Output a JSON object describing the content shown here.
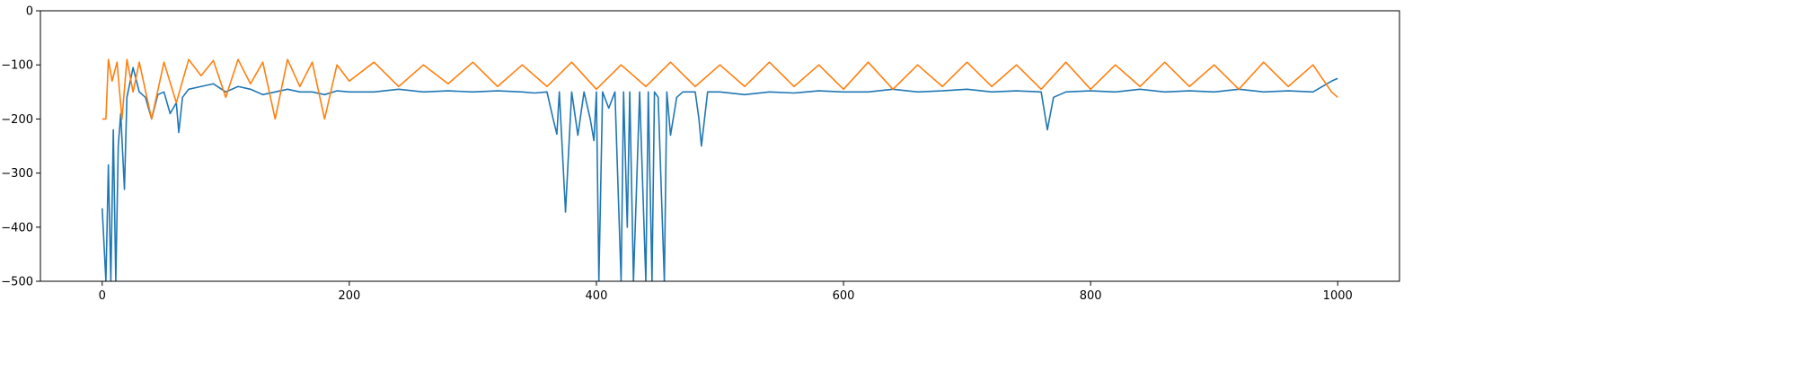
{
  "chart_data": {
    "type": "line",
    "title": "",
    "xlabel": "",
    "ylabel": "",
    "xlim": [
      -50,
      1050
    ],
    "ylim": [
      -500,
      0
    ],
    "xticks": [
      0,
      200,
      400,
      600,
      800,
      1000
    ],
    "xtick_labels": [
      "0",
      "200",
      "400",
      "600",
      "800",
      "1000"
    ],
    "yticks": [
      0,
      -100,
      -200,
      -300,
      -400,
      -500
    ],
    "ytick_labels": [
      "0",
      "−100",
      "−200",
      "−300",
      "−400",
      "−500"
    ],
    "grid": false,
    "legend": "none",
    "series": [
      {
        "color": "#1f77b4",
        "x": [
          0,
          3,
          5,
          7,
          9,
          11,
          13,
          15,
          18,
          20,
          25,
          30,
          35,
          40,
          45,
          50,
          55,
          60,
          62,
          65,
          70,
          80,
          90,
          100,
          110,
          120,
          130,
          140,
          150,
          160,
          170,
          180,
          190,
          200,
          220,
          240,
          260,
          280,
          300,
          320,
          340,
          350,
          360,
          365,
          368,
          370,
          375,
          380,
          385,
          390,
          395,
          398,
          400,
          402,
          405,
          410,
          415,
          420,
          422,
          425,
          427,
          430,
          435,
          440,
          442,
          445,
          447,
          450,
          455,
          457,
          460,
          465,
          470,
          475,
          480,
          483,
          485,
          490,
          500,
          520,
          540,
          560,
          580,
          600,
          620,
          640,
          660,
          680,
          700,
          720,
          740,
          760,
          765,
          770,
          780,
          800,
          820,
          840,
          860,
          880,
          900,
          920,
          940,
          960,
          980,
          995,
          1000
        ],
        "y": [
          -365,
          -500,
          -285,
          -500,
          -220,
          -500,
          -250,
          -190,
          -330,
          -160,
          -105,
          -150,
          -160,
          -200,
          -155,
          -150,
          -190,
          -170,
          -225,
          -160,
          -145,
          -140,
          -135,
          -150,
          -140,
          -145,
          -155,
          -150,
          -145,
          -150,
          -150,
          -155,
          -148,
          -150,
          -150,
          -145,
          -150,
          -148,
          -150,
          -148,
          -150,
          -152,
          -150,
          -200,
          -228,
          -150,
          -372,
          -150,
          -230,
          -150,
          -200,
          -240,
          -150,
          -500,
          -150,
          -180,
          -150,
          -500,
          -150,
          -400,
          -150,
          -500,
          -150,
          -500,
          -150,
          -500,
          -150,
          -160,
          -500,
          -150,
          -230,
          -160,
          -150,
          -150,
          -150,
          -200,
          -250,
          -150,
          -150,
          -155,
          -150,
          -152,
          -148,
          -150,
          -150,
          -145,
          -150,
          -148,
          -145,
          -150,
          -148,
          -150,
          -220,
          -160,
          -150,
          -148,
          -150,
          -145,
          -150,
          -148,
          -150,
          -145,
          -150,
          -148,
          -150,
          -130,
          -125
        ]
      },
      {
        "color": "#ff7f0e",
        "x": [
          0,
          3,
          5,
          8,
          12,
          16,
          20,
          25,
          30,
          40,
          50,
          60,
          70,
          80,
          90,
          100,
          110,
          120,
          130,
          140,
          150,
          160,
          170,
          180,
          190,
          200,
          220,
          240,
          260,
          280,
          300,
          320,
          340,
          360,
          380,
          400,
          420,
          440,
          460,
          480,
          500,
          520,
          540,
          560,
          580,
          600,
          620,
          640,
          660,
          680,
          700,
          720,
          740,
          760,
          780,
          800,
          820,
          840,
          860,
          880,
          900,
          920,
          940,
          960,
          980,
          995,
          1000
        ],
        "y": [
          -200,
          -200,
          -90,
          -130,
          -95,
          -200,
          -90,
          -150,
          -95,
          -200,
          -95,
          -170,
          -90,
          -120,
          -92,
          -160,
          -90,
          -135,
          -95,
          -200,
          -90,
          -140,
          -95,
          -200,
          -100,
          -130,
          -95,
          -140,
          -100,
          -135,
          -95,
          -140,
          -100,
          -140,
          -95,
          -145,
          -100,
          -140,
          -95,
          -140,
          -100,
          -140,
          -95,
          -140,
          -100,
          -145,
          -95,
          -145,
          -100,
          -140,
          -95,
          -140,
          -100,
          -145,
          -95,
          -145,
          -100,
          -140,
          -95,
          -140,
          -100,
          -145,
          -95,
          -140,
          -100,
          -150,
          -160
        ]
      }
    ]
  }
}
